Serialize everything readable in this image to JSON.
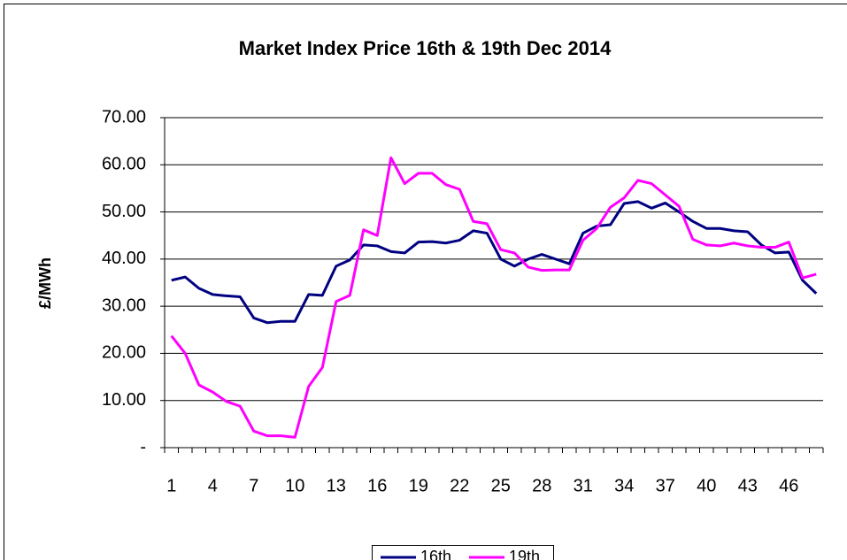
{
  "chart_data": {
    "type": "line",
    "title": "Market Index Price 16th & 19th Dec 2014",
    "y_label": "£/MWh",
    "categories": [
      "1",
      null,
      null,
      "4",
      null,
      null,
      "7",
      null,
      null,
      "10",
      null,
      null,
      "13",
      null,
      null,
      "16",
      null,
      null,
      "19",
      null,
      null,
      "22",
      null,
      null,
      "25",
      null,
      null,
      "28",
      null,
      null,
      "31",
      null,
      null,
      "34",
      null,
      null,
      "37",
      null,
      null,
      "40",
      null,
      null,
      "43",
      null,
      null,
      "46",
      null,
      null
    ],
    "series": [
      {
        "name": "16th",
        "color": "#000080",
        "values": [
          35.5,
          36.2,
          33.8,
          32.5,
          32.2,
          32.0,
          27.5,
          26.5,
          26.8,
          26.8,
          32.5,
          32.3,
          38.5,
          39.8,
          43.0,
          42.8,
          41.6,
          41.3,
          43.6,
          43.7,
          43.4,
          44.0,
          46.0,
          45.5,
          40.0,
          38.5,
          40.0,
          41.0,
          40.0,
          39.0,
          45.5,
          47.0,
          47.3,
          51.8,
          52.2,
          50.8,
          51.9,
          50.0,
          48.0,
          46.5,
          46.5,
          46.0,
          45.8,
          43.0,
          41.3,
          41.5,
          35.5,
          32.7
        ]
      },
      {
        "name": "19th",
        "color": "#ff00ff",
        "values": [
          23.7,
          20.0,
          13.3,
          11.8,
          9.8,
          8.8,
          3.5,
          2.5,
          2.5,
          2.2,
          13.0,
          17.0,
          31.0,
          32.3,
          46.2,
          45.0,
          61.5,
          56.0,
          58.2,
          58.2,
          55.8,
          54.8,
          48.0,
          47.5,
          42.0,
          41.3,
          38.3,
          37.6,
          37.7,
          37.7,
          44.0,
          46.5,
          51.0,
          53.0,
          56.7,
          56.0,
          53.6,
          51.2,
          44.2,
          43.0,
          42.8,
          43.4,
          42.8,
          42.5,
          42.5,
          43.6,
          36.0,
          36.8
        ]
      }
    ],
    "ylim": [
      0,
      70
    ],
    "yticks": [
      {
        "value": 0,
        "label": "-"
      },
      {
        "value": 10,
        "label": "10.00"
      },
      {
        "value": 20,
        "label": "20.00"
      },
      {
        "value": 30,
        "label": "30.00"
      },
      {
        "value": 40,
        "label": "40.00"
      },
      {
        "value": 50,
        "label": "50.00"
      },
      {
        "value": 60,
        "label": "60.00"
      },
      {
        "value": 70,
        "label": "70.00"
      }
    ],
    "grid": true,
    "legend": "bottom"
  }
}
